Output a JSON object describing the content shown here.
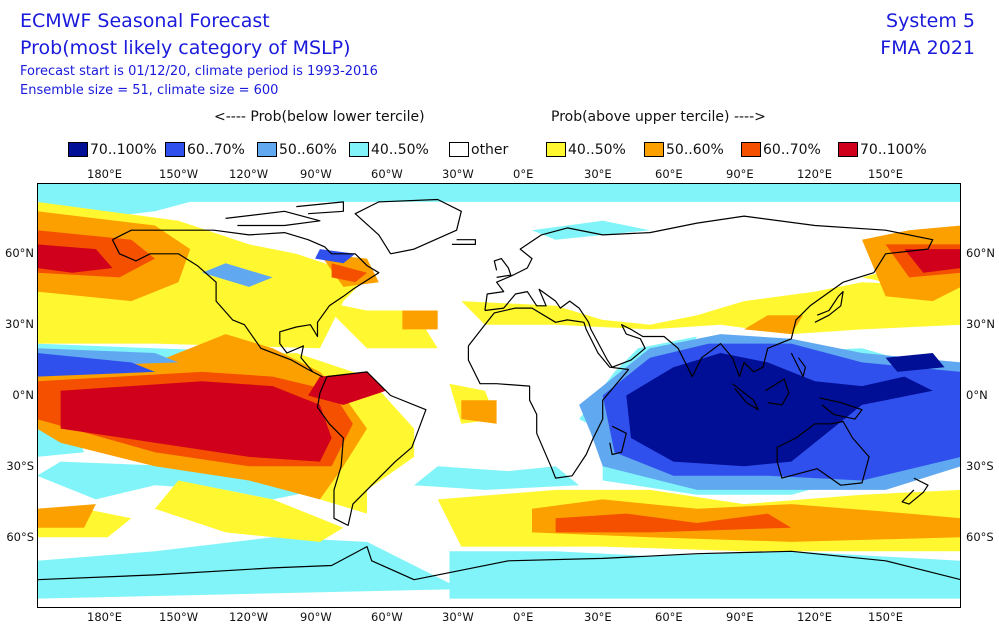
{
  "header": {
    "title": "ECMWF Seasonal Forecast",
    "subtitle": "Prob(most likely category of MSLP)",
    "line3": "Forecast start is 01/12/20, climate period is 1993-2016",
    "line4": "Ensemble size = 51, climate size = 600",
    "system": "System 5",
    "season": "FMA 2021"
  },
  "legend": {
    "below_header": "<---- Prob(below lower tercile)",
    "above_header": "Prob(above upper tercile) ---->",
    "items": [
      {
        "label": "70..100%",
        "color": "#000f96"
      },
      {
        "label": "60..70%",
        "color": "#3050ee"
      },
      {
        "label": "50..60%",
        "color": "#60a8f0"
      },
      {
        "label": "40..50%",
        "color": "#80f4f8"
      },
      {
        "label": "other",
        "color": "#ffffff"
      },
      {
        "label": "40..50%",
        "color": "#fff830"
      },
      {
        "label": "50..60%",
        "color": "#fca000"
      },
      {
        "label": "60..70%",
        "color": "#f45000"
      },
      {
        "label": "70..100%",
        "color": "#d0001c"
      }
    ]
  },
  "axes": {
    "lon_labels": [
      "180°E",
      "150°W",
      "120°W",
      "90°W",
      "60°W",
      "30°W",
      "0°E",
      "30°E",
      "60°E",
      "90°E",
      "120°E",
      "150°E"
    ],
    "lat_labels": [
      "60°N",
      "30°N",
      "0°N",
      "30°S",
      "60°S"
    ]
  },
  "map": {
    "lon_range": [
      -200,
      192
    ],
    "lat_range": [
      -90,
      90
    ]
  }
}
